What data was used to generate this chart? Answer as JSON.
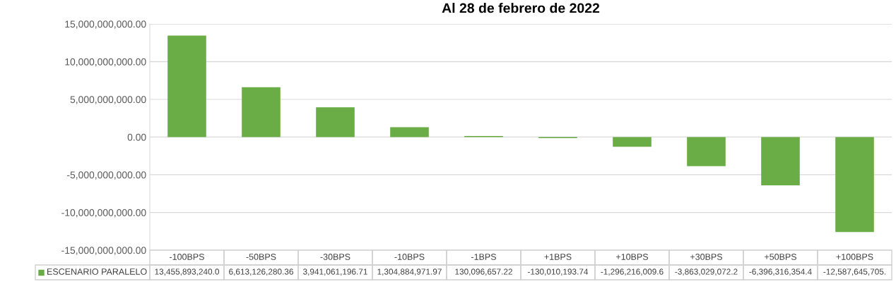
{
  "chart_data": {
    "type": "bar",
    "title": "Al 28 de febrero de 2022",
    "categories": [
      "-100BPS",
      "-50BPS",
      "-30BPS",
      "-10BPS",
      "-1BPS",
      "+1BPS",
      "+10BPS",
      "+30BPS",
      "+50BPS",
      "+100BPS"
    ],
    "series": [
      {
        "name": "ESCENARIO PARALELO",
        "color": "#6aac45",
        "values": [
          13455893240.0,
          6613126280.36,
          3941061196.71,
          1304884971.97,
          130096657.22,
          -130010193.74,
          -1296216009.6,
          -3863029072.2,
          -6396316354.4,
          -12587645705
        ],
        "value_labels": [
          "13,455,893,240.0",
          "6,613,126,280.36",
          "3,941,061,196.71",
          "1,304,884,971.97",
          "130,096,657.22",
          "-130,010,193.74",
          "-1,296,216,009.6",
          "-3,863,029,072.2",
          "-6,396,316,354.4",
          "-12,587,645,705."
        ]
      }
    ],
    "ylim": [
      -15000000000,
      15000000000
    ],
    "yticks": [
      {
        "value": -15000000000,
        "label": "-15,000,000,000.00"
      },
      {
        "value": -10000000000,
        "label": "-10,000,000,000.00"
      },
      {
        "value": -5000000000,
        "label": "-5,000,000,000.00"
      },
      {
        "value": 0,
        "label": "0.00"
      },
      {
        "value": 5000000000,
        "label": "5,000,000,000.00"
      },
      {
        "value": 10000000000,
        "label": "10,000,000,000.00"
      },
      {
        "value": 15000000000,
        "label": "15,000,000,000.00"
      }
    ],
    "grid": "y",
    "legend": "bottom"
  }
}
